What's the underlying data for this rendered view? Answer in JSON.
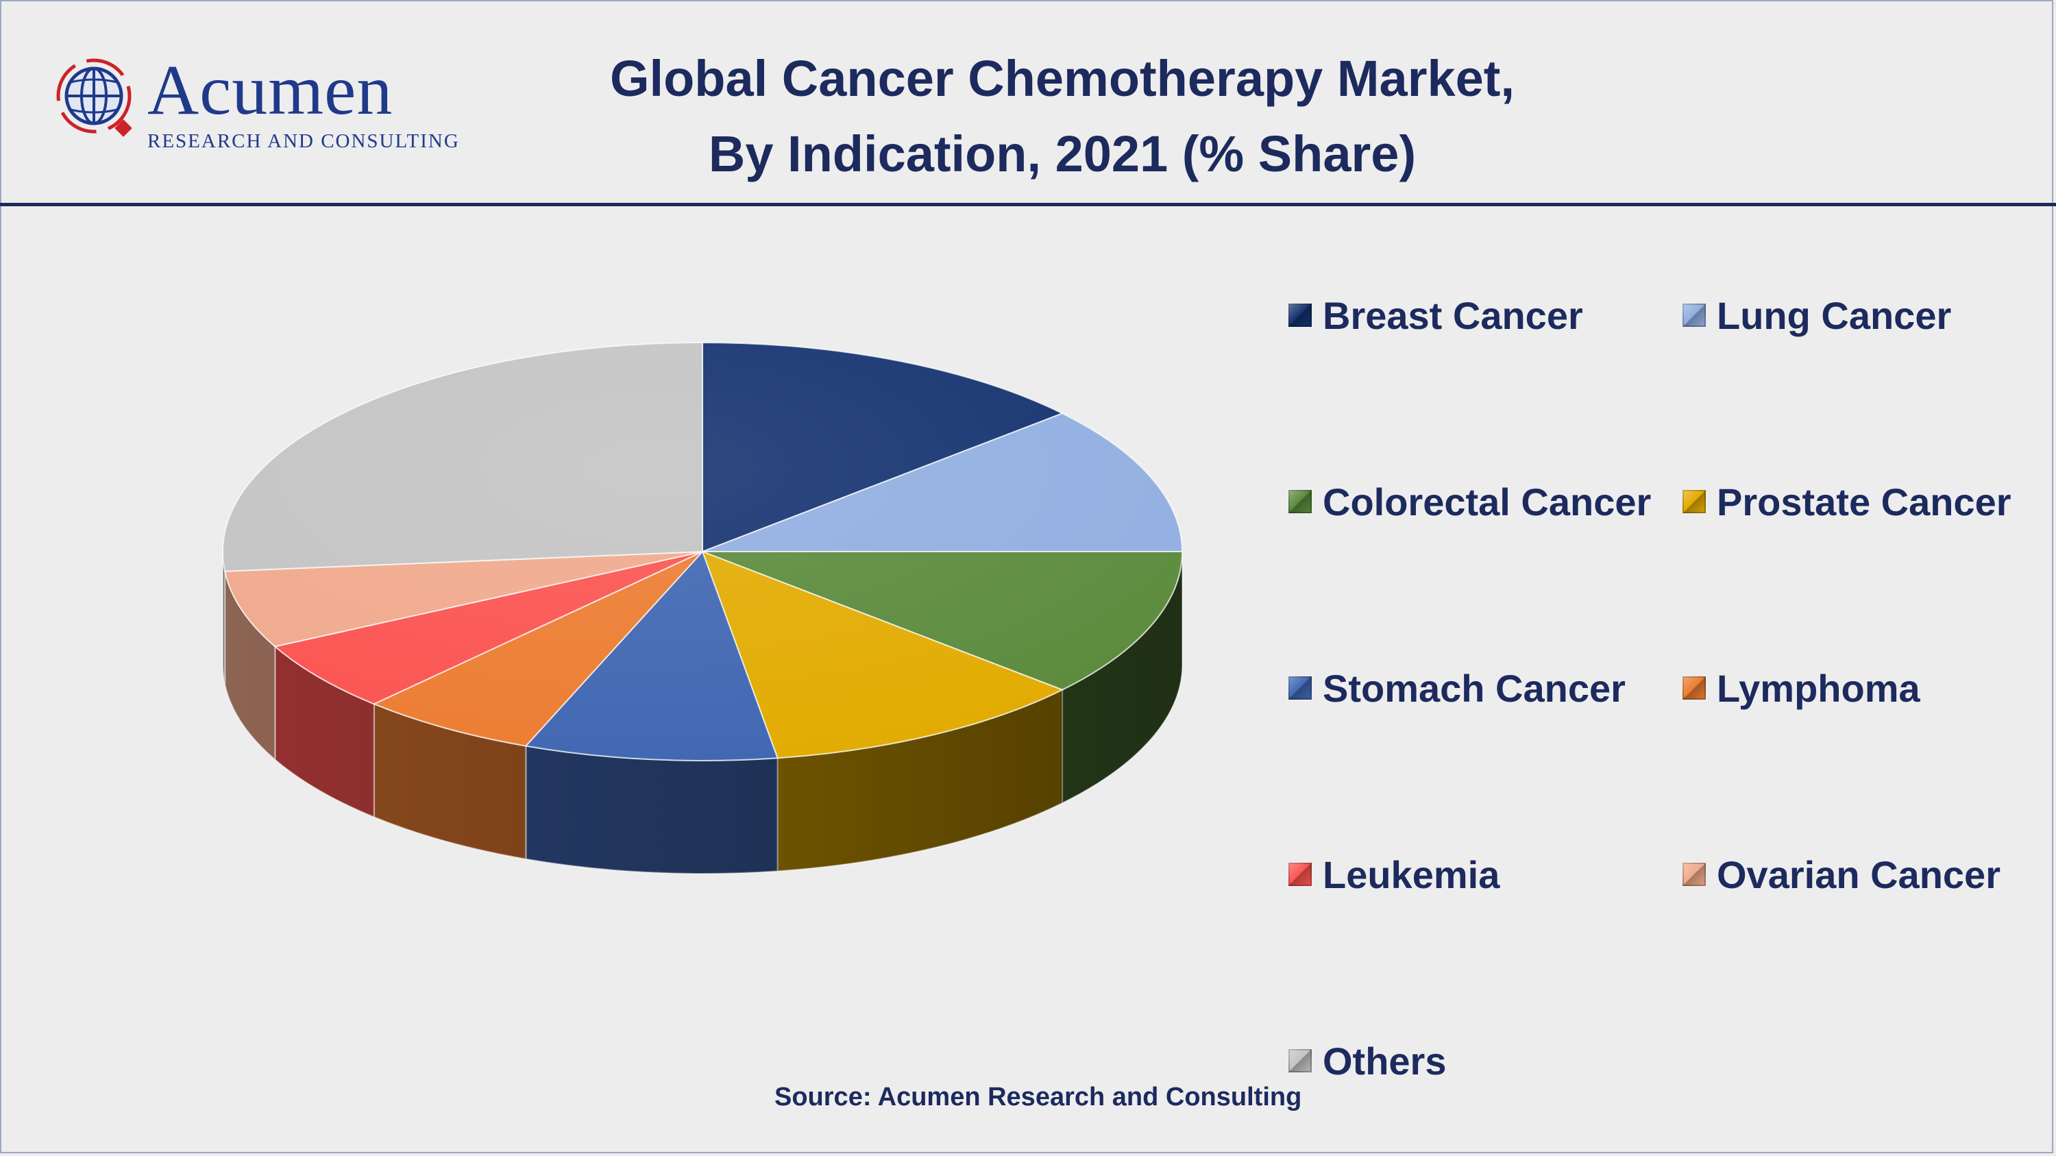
{
  "header": {
    "title_line1": "Global Cancer Chemotherapy Market,",
    "title_line2": "By Indication, 2021 (% Share)",
    "logo_word": "Acumen",
    "logo_sub": "RESEARCH AND CONSULTING"
  },
  "footer": {
    "source": "Source: Acumen Research and Consulting"
  },
  "colors": {
    "title": "#1c2a5e",
    "accent_rule": "#1c2a5e",
    "background": "#ededed"
  },
  "chart_data": {
    "type": "pie",
    "title": "Global Cancer Chemotherapy Market, By Indication, 2021 (% Share)",
    "unit": "% share (estimated)",
    "legend_position": "right",
    "categories": [
      "Breast Cancer",
      "Lung Cancer",
      "Colorectal Cancer",
      "Prostate Cancer",
      "Stomach Cancer",
      "Lymphoma",
      "Leukemia",
      "Ovarian Cancer",
      "Others"
    ],
    "values": [
      13.5,
      11.5,
      11.5,
      11.0,
      8.5,
      6.0,
      5.5,
      6.0,
      26.5
    ],
    "colors": [
      "#13316f",
      "#90aee0",
      "#5a8a3b",
      "#e2ab00",
      "#3f66b2",
      "#ec7c30",
      "#fb5350",
      "#f0a98c",
      "#c3c3c3"
    ]
  }
}
